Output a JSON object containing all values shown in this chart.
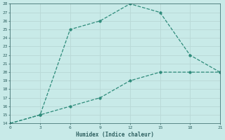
{
  "line1_x": [
    0,
    3,
    6,
    9,
    12,
    15,
    18,
    21
  ],
  "line1_y": [
    14,
    15,
    25,
    26,
    28,
    27,
    22,
    20
  ],
  "line2_x": [
    0,
    3,
    6,
    9,
    12,
    15,
    18,
    21
  ],
  "line2_y": [
    14,
    15,
    16,
    17,
    19,
    20,
    20,
    20
  ],
  "line_color": "#2e8b7a",
  "bg_color": "#c8eae8",
  "grid_color": "#b8d8d6",
  "xlabel": "Humidex (Indice chaleur)",
  "xlim": [
    0,
    21
  ],
  "ylim": [
    14,
    28
  ],
  "xticks": [
    0,
    3,
    6,
    9,
    12,
    15,
    18,
    21
  ],
  "yticks": [
    14,
    15,
    16,
    17,
    18,
    19,
    20,
    21,
    22,
    23,
    24,
    25,
    26,
    27,
    28
  ],
  "font_color": "#2e6060",
  "markersize": 2.5,
  "linewidth": 0.9,
  "linestyle": "--"
}
